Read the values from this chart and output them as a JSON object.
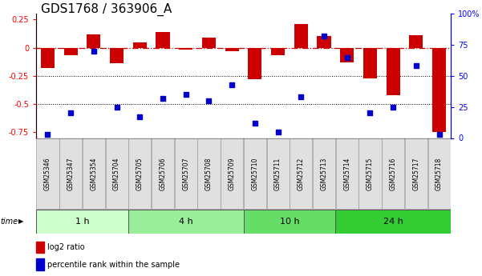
{
  "title": "GDS1768 / 363906_A",
  "samples": [
    "GSM25346",
    "GSM25347",
    "GSM25354",
    "GSM25704",
    "GSM25705",
    "GSM25706",
    "GSM25707",
    "GSM25708",
    "GSM25709",
    "GSM25710",
    "GSM25711",
    "GSM25712",
    "GSM25713",
    "GSM25714",
    "GSM25715",
    "GSM25716",
    "GSM25717",
    "GSM25718"
  ],
  "log2_ratio": [
    -0.18,
    -0.07,
    0.12,
    -0.14,
    0.05,
    0.14,
    -0.02,
    0.09,
    -0.03,
    -0.28,
    -0.07,
    0.21,
    0.1,
    -0.13,
    -0.27,
    -0.42,
    0.11,
    -0.75
  ],
  "percentile_rank": [
    3,
    20,
    70,
    25,
    17,
    32,
    35,
    30,
    43,
    12,
    5,
    33,
    82,
    65,
    20,
    25,
    58,
    3
  ],
  "groups": [
    {
      "label": "1 h",
      "start": 0,
      "end": 4,
      "color": "#ccffcc"
    },
    {
      "label": "4 h",
      "start": 4,
      "end": 9,
      "color": "#99ee99"
    },
    {
      "label": "10 h",
      "start": 9,
      "end": 13,
      "color": "#66dd66"
    },
    {
      "label": "24 h",
      "start": 13,
      "end": 18,
      "color": "#33cc33"
    }
  ],
  "bar_color": "#cc0000",
  "dot_color": "#0000cc",
  "zero_line_color": "#cc0000",
  "dotted_line_color": "#000000",
  "ylim_left": [
    -0.8,
    0.3
  ],
  "ylim_right": [
    0,
    100
  ],
  "yticks_left": [
    0.25,
    0.0,
    -0.25,
    -0.5,
    -0.75
  ],
  "yticks_left_labels": [
    "0.25",
    "0",
    "-0.25",
    "-0.5",
    "-0.75"
  ],
  "yticks_right": [
    100,
    75,
    50,
    25,
    0
  ],
  "yticks_right_labels": [
    "100%",
    "75",
    "50",
    "25",
    "0"
  ],
  "bg_color": "#ffffff",
  "title_fontsize": 11,
  "tick_fontsize": 7,
  "group_label_fontsize": 8,
  "time_label_fontsize": 7,
  "legend_fontsize": 7,
  "sample_fontsize": 5.5
}
